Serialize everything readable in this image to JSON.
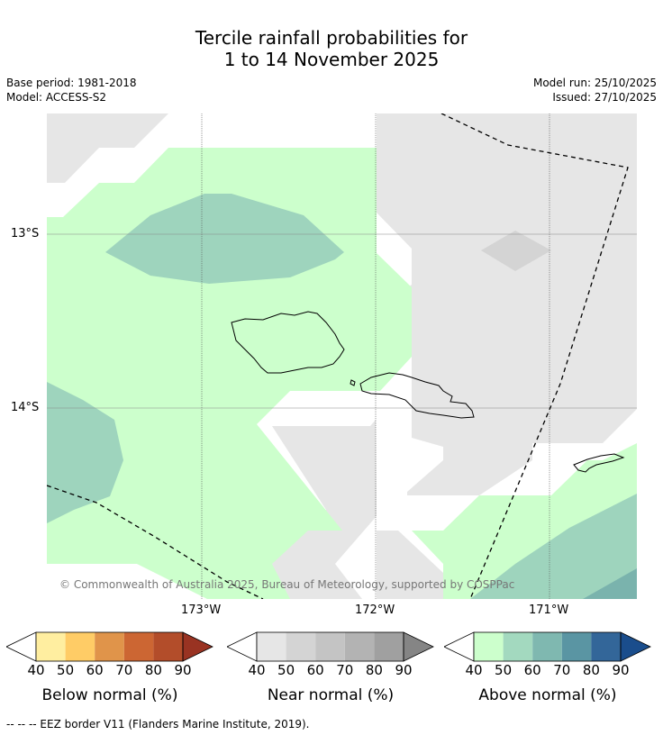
{
  "title": {
    "line1": "Tercile rainfall probabilities for",
    "line2": "1 to 14 November 2025"
  },
  "meta": {
    "base_period": "Base period: 1981-2018",
    "model": "Model: ACCESS-S2",
    "model_run": "Model run: 25/10/2025",
    "issued": "Issued: 27/10/2025"
  },
  "map": {
    "lat_labels": [
      "13°S",
      "14°S"
    ],
    "lon_labels": [
      "173°W",
      "172°W",
      "171°W"
    ],
    "copyright": "© Commonwealth of Australia 2025, Bureau of Meteorology, supported by COSPPac",
    "colors": {
      "near_normal_40": "#e6e6e6",
      "near_normal_50": "#d4d4d4",
      "above_normal_40": "#ccffcc",
      "above_normal_50": "#9ed4bd",
      "above_normal_60": "#7ab3ad",
      "above_normal_70": "#5c96a3"
    }
  },
  "colorbars": [
    {
      "label": "Below normal (%)",
      "ticks": [
        "40",
        "50",
        "60",
        "70",
        "80",
        "90"
      ],
      "colors": [
        "#ffeea0",
        "#ffcc66",
        "#e0944a",
        "#cc6633",
        "#b34d2a",
        "#993322"
      ]
    },
    {
      "label": "Near normal (%)",
      "ticks": [
        "40",
        "50",
        "60",
        "70",
        "80",
        "90"
      ],
      "colors": [
        "#e6e6e6",
        "#d4d4d4",
        "#c4c4c4",
        "#b3b3b3",
        "#a0a0a0",
        "#858585"
      ]
    },
    {
      "label": "Above normal (%)",
      "ticks": [
        "40",
        "50",
        "60",
        "70",
        "80",
        "90"
      ],
      "colors": [
        "#ccffcc",
        "#a3d9bf",
        "#7fb8b0",
        "#5a95a3",
        "#336699",
        "#1a4d8c"
      ]
    }
  ],
  "footer": "--  --  -- EEZ border V11 (Flanders Marine Institute, 2019)."
}
